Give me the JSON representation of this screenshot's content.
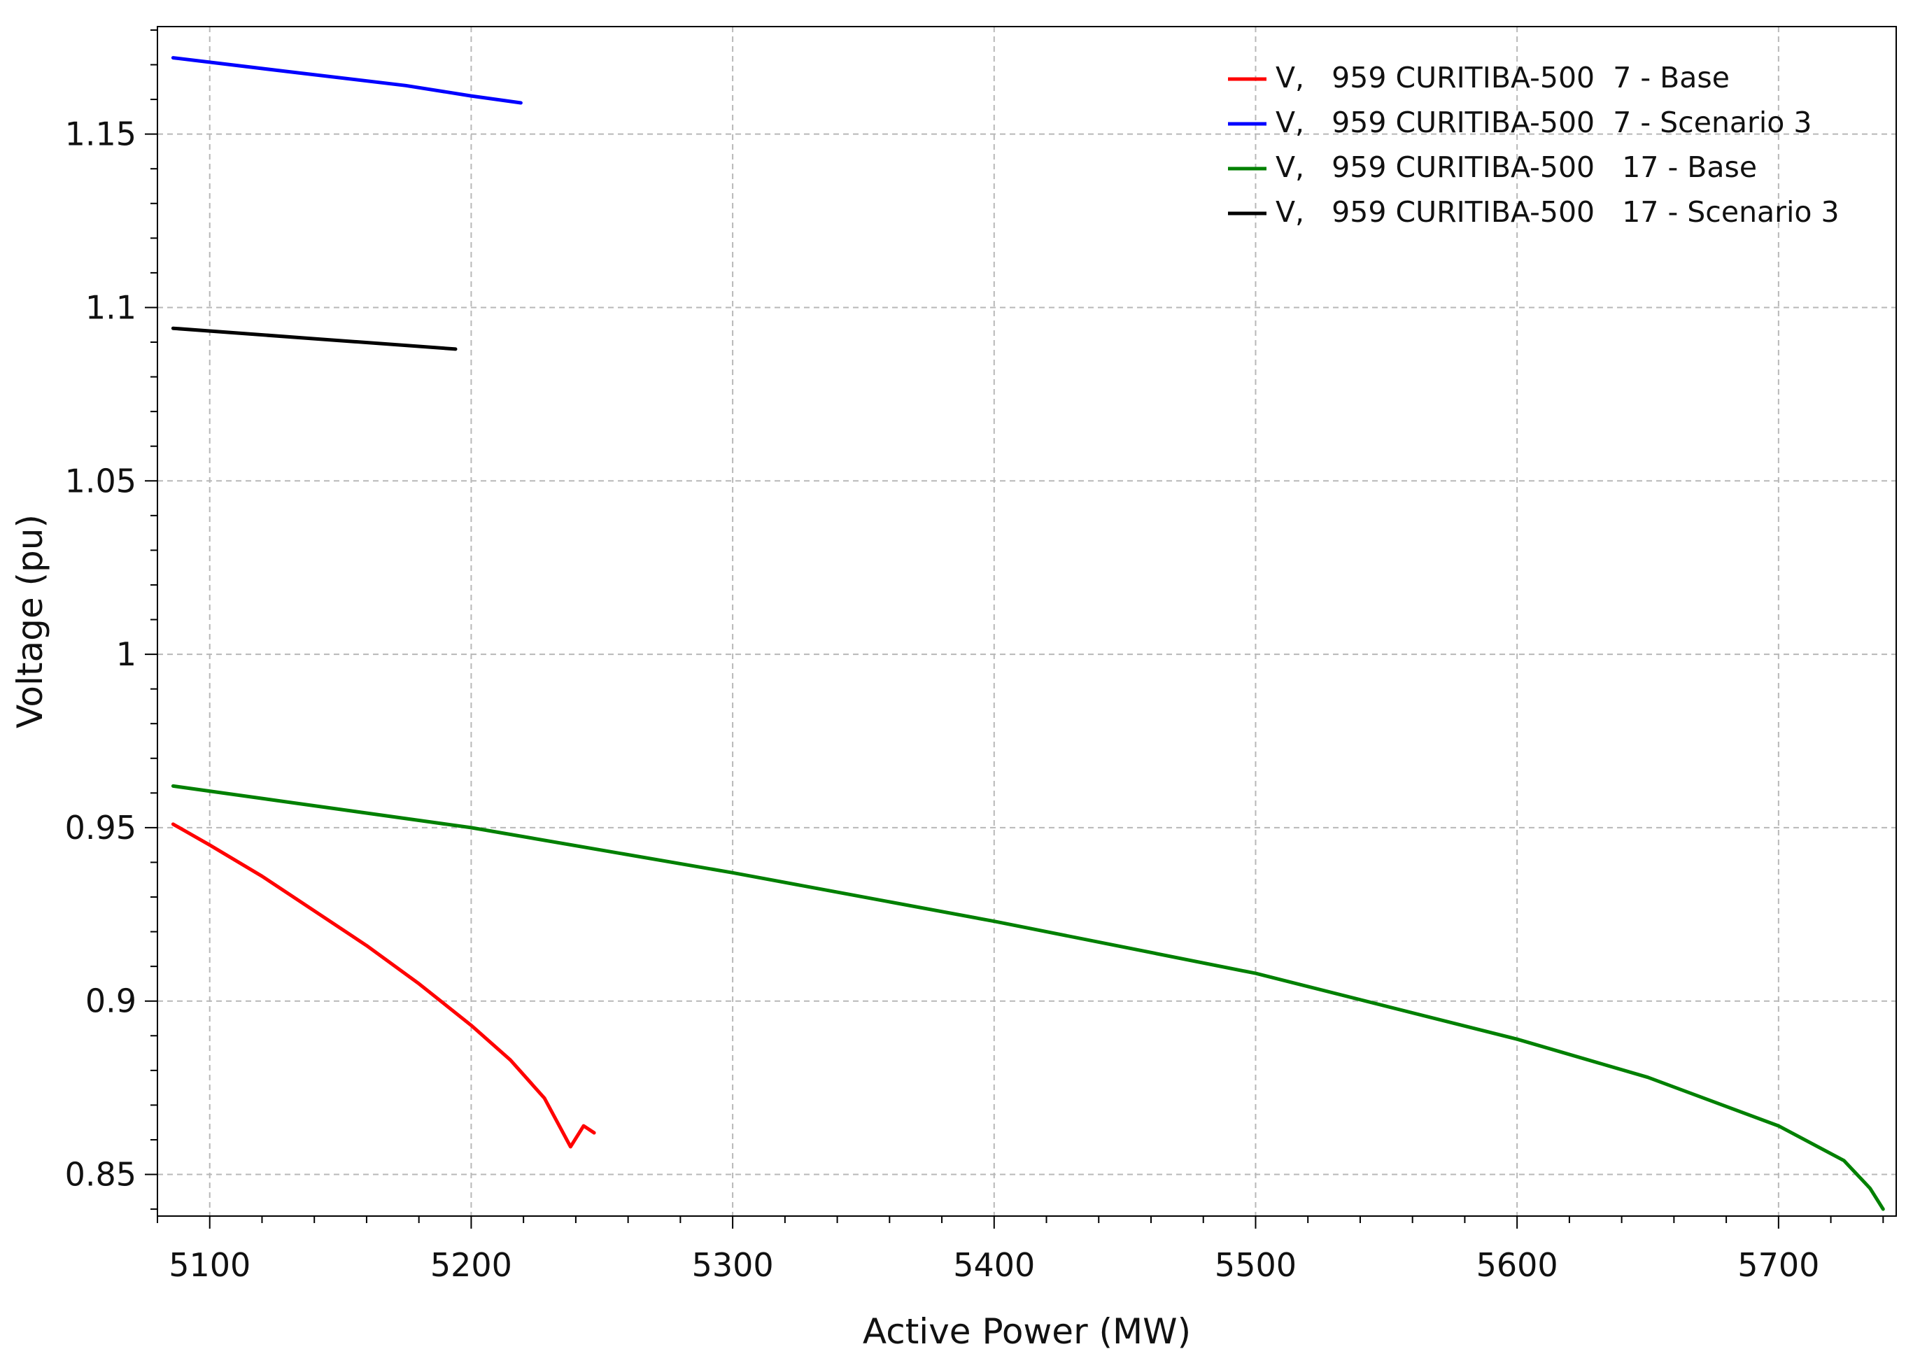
{
  "chart_data": {
    "type": "line",
    "xlabel": "Active Power (MW)",
    "ylabel": "Voltage (pu)",
    "xlim": [
      5080,
      5745
    ],
    "ylim": [
      0.838,
      1.181
    ],
    "x_ticks": [
      5100,
      5200,
      5300,
      5400,
      5500,
      5600,
      5700
    ],
    "x_tick_labels": [
      "5100",
      "5200",
      "5300",
      "5400",
      "5500",
      "5600",
      "5700"
    ],
    "y_ticks": [
      0.85,
      0.9,
      0.95,
      1.0,
      1.05,
      1.1,
      1.15
    ],
    "y_tick_labels": [
      "0.85",
      "0.9",
      "0.95",
      "1",
      "1.05",
      "1.1",
      "1.15"
    ],
    "grid": true,
    "legend_position": "top-right",
    "series": [
      {
        "name": "V,   959 CURITIBA-500  7 - Base",
        "color": "#ff0000",
        "x": [
          5086,
          5100,
          5120,
          5140,
          5160,
          5180,
          5200,
          5215,
          5228,
          5238,
          5243,
          5247
        ],
        "y": [
          0.951,
          0.945,
          0.936,
          0.926,
          0.916,
          0.905,
          0.893,
          0.883,
          0.872,
          0.858,
          0.864,
          0.862
        ]
      },
      {
        "name": "V,   959 CURITIBA-500  7 - Scenario 3",
        "color": "#0000ff",
        "x": [
          5086,
          5130,
          5175,
          5200,
          5219
        ],
        "y": [
          1.172,
          1.168,
          1.164,
          1.161,
          1.159
        ]
      },
      {
        "name": "V,   959 CURITIBA-500   17 - Base",
        "color": "#008000",
        "x": [
          5086,
          5200,
          5300,
          5400,
          5500,
          5600,
          5650,
          5700,
          5725,
          5735,
          5740
        ],
        "y": [
          0.962,
          0.95,
          0.937,
          0.923,
          0.908,
          0.889,
          0.878,
          0.864,
          0.854,
          0.846,
          0.84
        ]
      },
      {
        "name": "V,   959 CURITIBA-500   17 - Scenario 3",
        "color": "#000000",
        "x": [
          5086,
          5140,
          5194
        ],
        "y": [
          1.094,
          1.091,
          1.088
        ]
      }
    ]
  }
}
